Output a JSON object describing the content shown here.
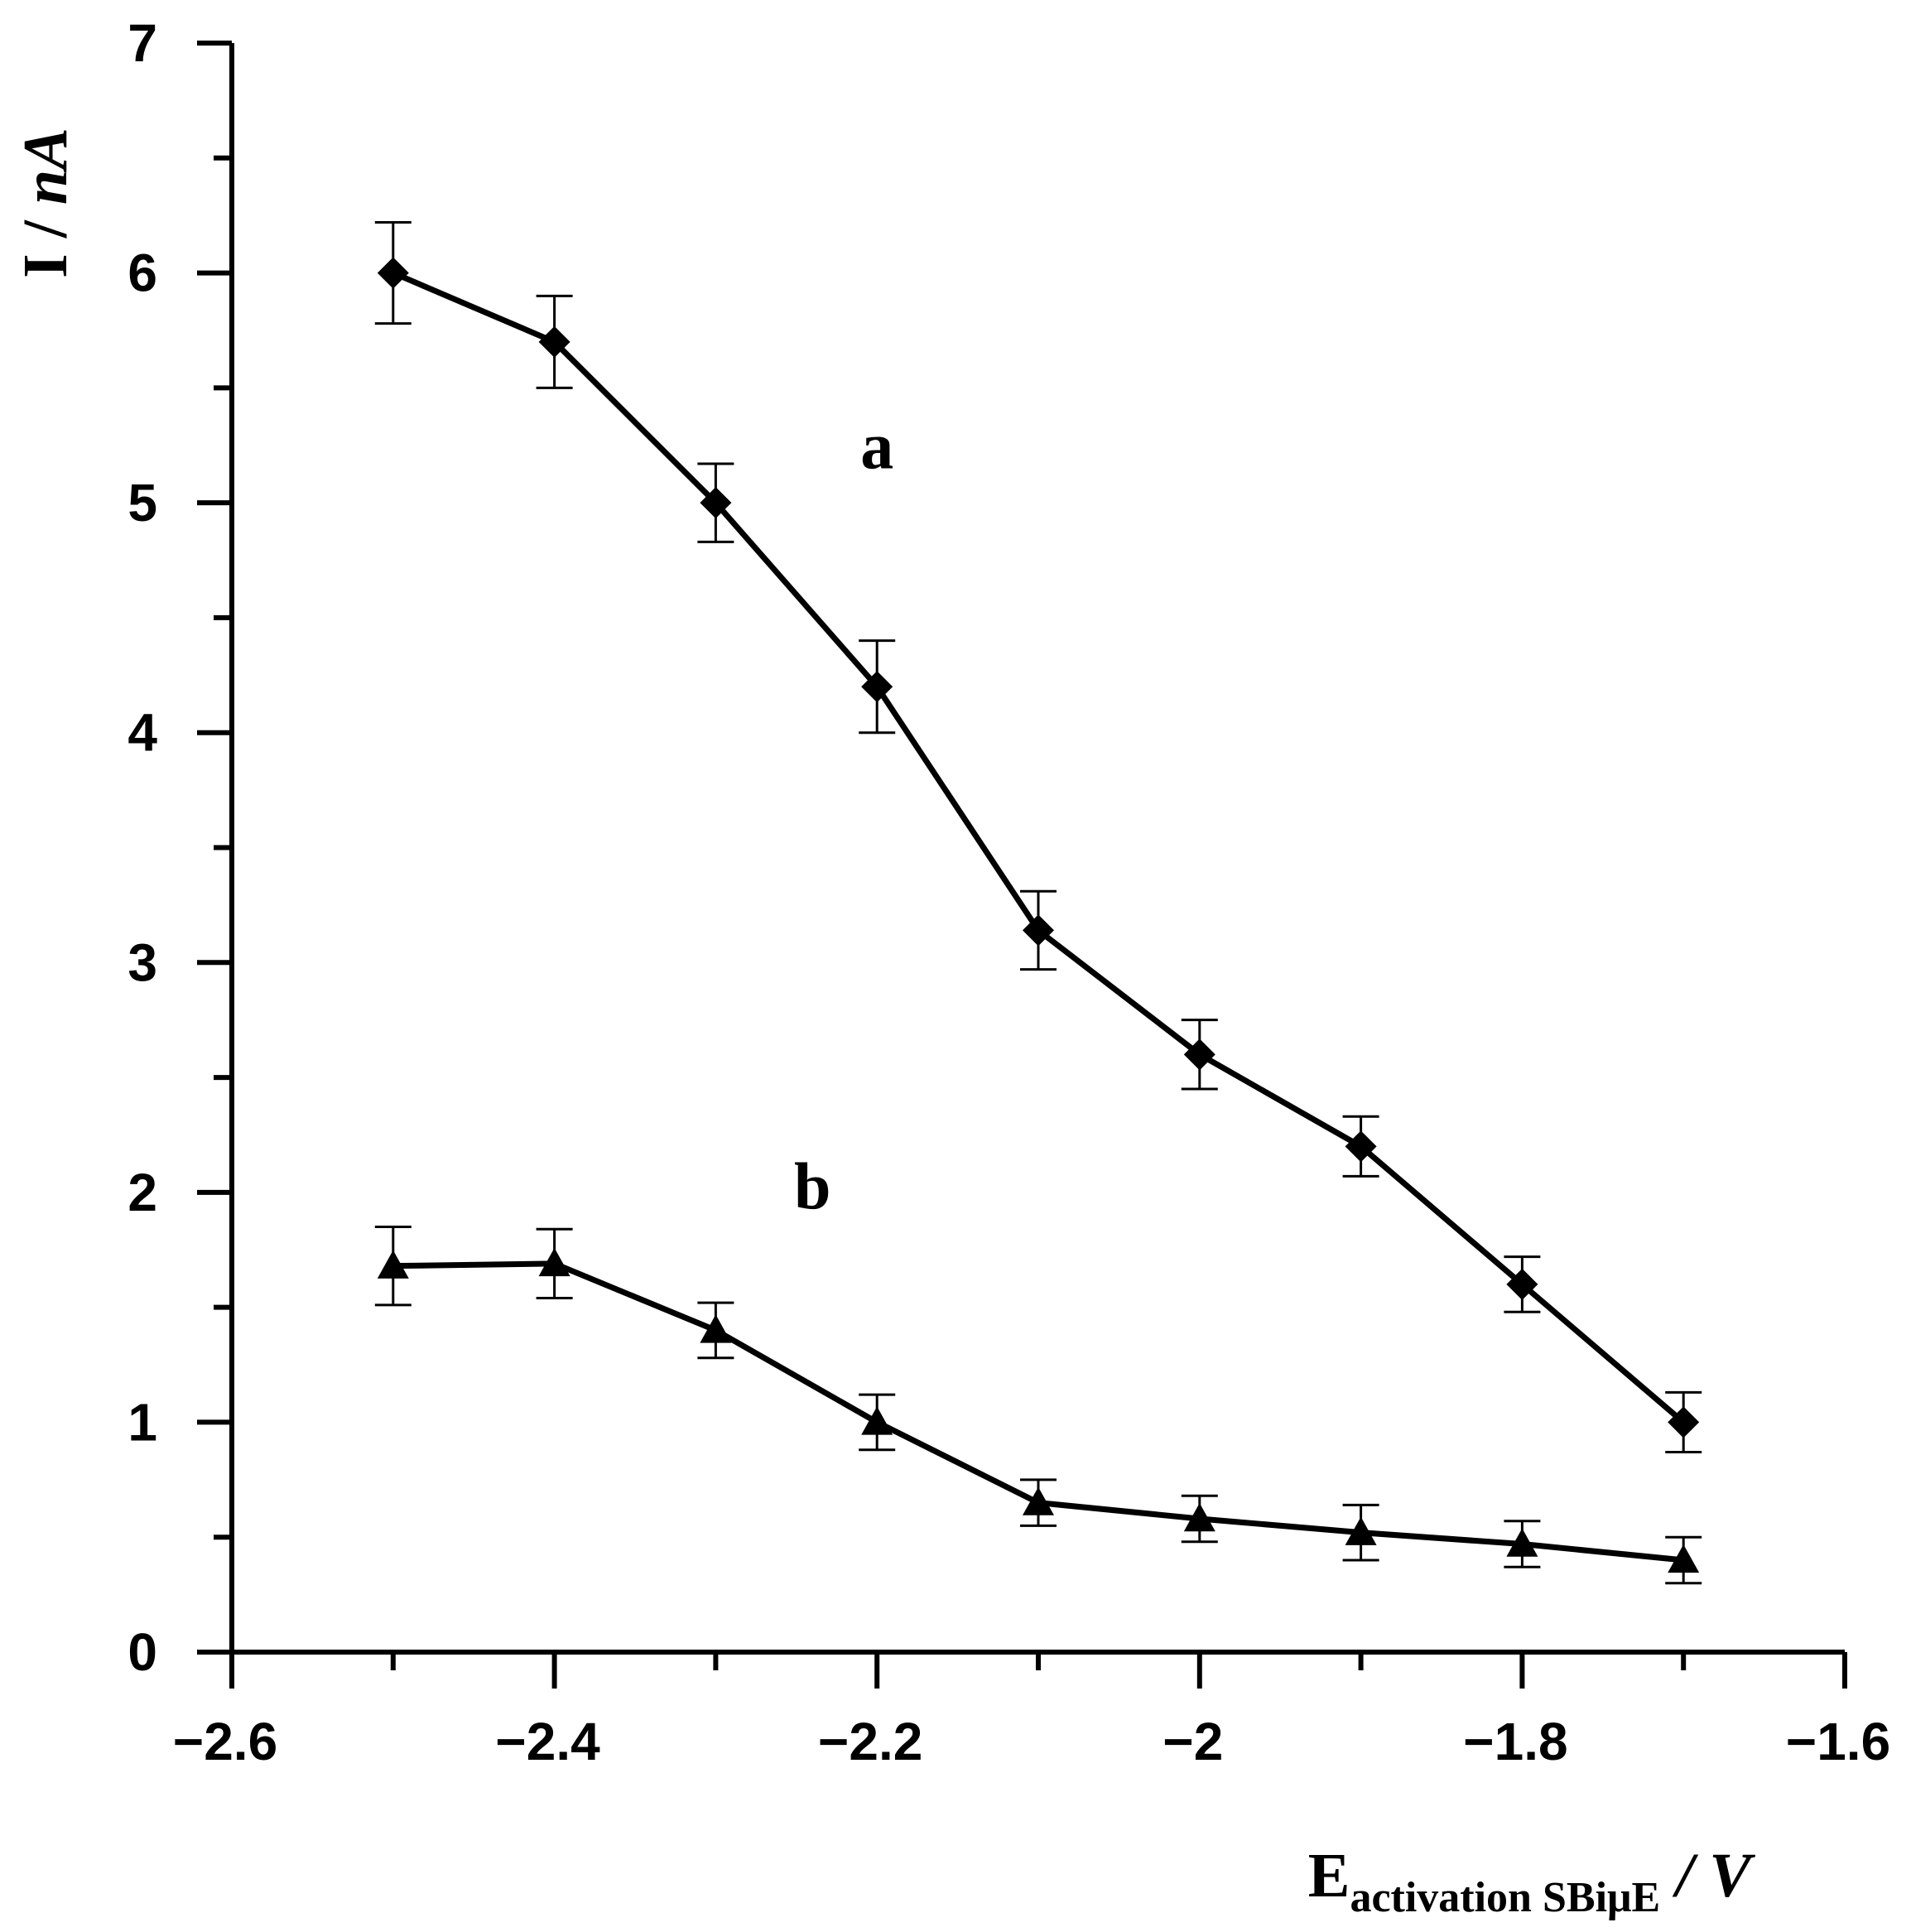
{
  "chart_data": {
    "type": "line",
    "title": "",
    "xlabel": {
      "main": "E",
      "subscript": "activation SBiμE",
      "unit": " / V"
    },
    "ylabel": {
      "main": "I / ",
      "unit": "nA"
    },
    "xlim": [
      -2.6,
      -1.6
    ],
    "ylim": [
      0,
      7
    ],
    "xticks": [
      -2.6,
      -2.4,
      -2.2,
      -2.0,
      -1.8,
      -1.6
    ],
    "xtick_labels": [
      "−2.6",
      "−2.4",
      "−2.2",
      "−2",
      "−1.8",
      "−1.6"
    ],
    "yticks": [
      0,
      1,
      2,
      3,
      4,
      5,
      6,
      7
    ],
    "ytick_labels": [
      "0",
      "1",
      "2",
      "3",
      "4",
      "5",
      "6",
      "7"
    ],
    "grid": false,
    "x": [
      -2.5,
      -2.4,
      -2.3,
      -2.2,
      -2.1,
      -2.0,
      -1.9,
      -1.8,
      -1.7
    ],
    "series": [
      {
        "label": "a",
        "marker": "diamond",
        "label_at": [
          -2.2,
          5.15
        ],
        "values": [
          6.0,
          5.7,
          5.0,
          4.2,
          3.14,
          2.6,
          2.2,
          1.6,
          1.0
        ],
        "errors": [
          0.22,
          0.2,
          0.17,
          0.2,
          0.17,
          0.15,
          0.13,
          0.12,
          0.13
        ]
      },
      {
        "label": "b",
        "marker": "triangle",
        "label_at": [
          -2.24,
          1.93
        ],
        "values": [
          1.68,
          1.69,
          1.4,
          1.0,
          0.65,
          0.58,
          0.52,
          0.47,
          0.4
        ],
        "errors": [
          0.17,
          0.15,
          0.12,
          0.12,
          0.1,
          0.1,
          0.12,
          0.1,
          0.1
        ]
      }
    ]
  }
}
